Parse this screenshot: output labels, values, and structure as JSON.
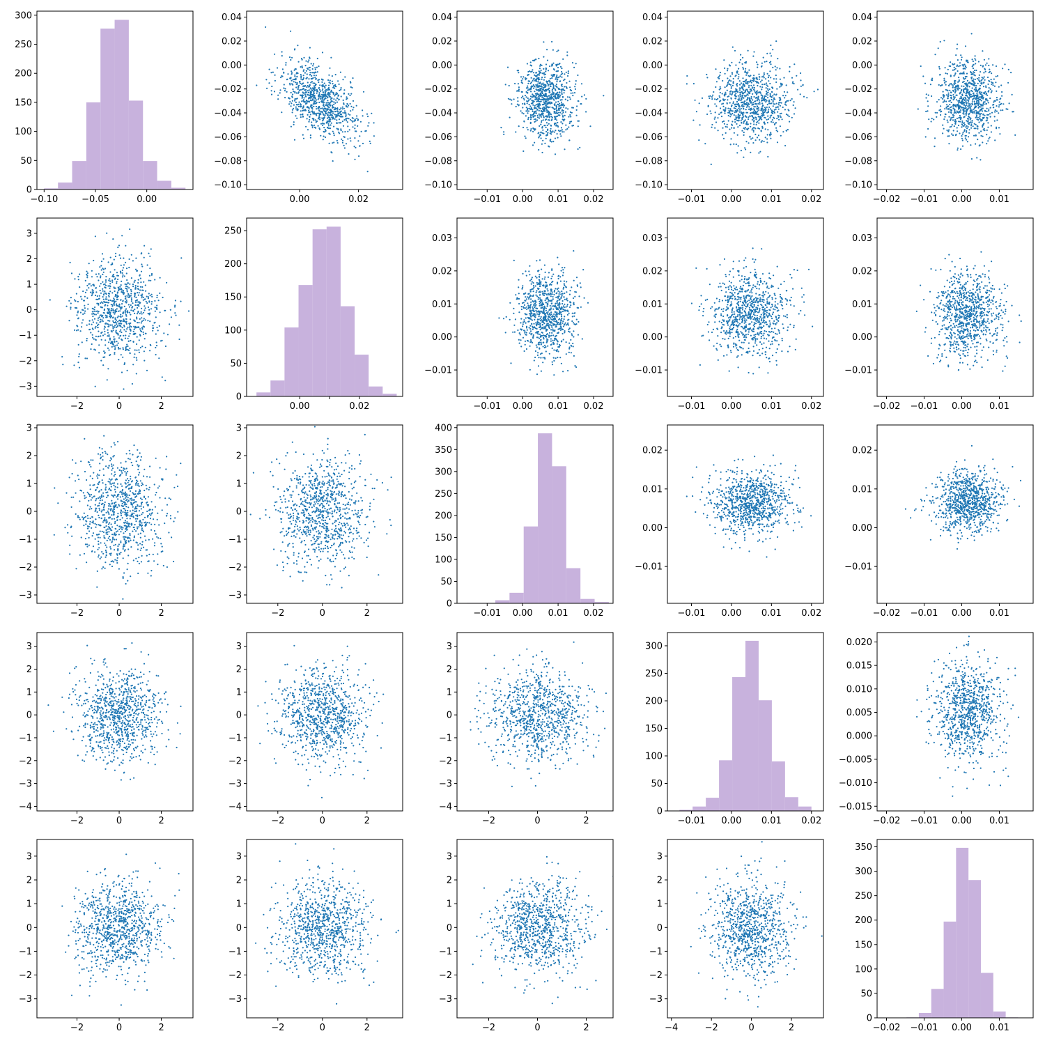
{
  "figure": {
    "layout": "5x5 pair plot (histograms on diagonal, scatter plots off-diagonal)",
    "hist_color": "#c8b2dd",
    "point_color": "#1f77b4",
    "background": "#ffffff"
  },
  "chart_data": [
    {
      "type": "bar",
      "panel": [
        0,
        0
      ],
      "bin_edges": [
        -0.1,
        -0.0865,
        -0.0727,
        -0.0589,
        -0.0451,
        -0.0313,
        -0.0175,
        -0.0037,
        0.0101,
        0.0239,
        0.0377
      ],
      "values": [
        2,
        12,
        49,
        150,
        277,
        292,
        153,
        49,
        15,
        3
      ],
      "xlim": [
        -0.107,
        0.045
      ],
      "ylim": [
        0,
        307
      ],
      "xticks": [
        -0.1,
        -0.05,
        0.0
      ],
      "xtick_labels": [
        "−0.10",
        "−0.05",
        "0.00"
      ],
      "yticks": [
        0,
        50,
        100,
        150,
        200,
        250,
        300
      ],
      "ytick_labels": [
        "0",
        "50",
        "100",
        "150",
        "200",
        "250",
        "300"
      ]
    },
    {
      "type": "scatter",
      "panel": [
        0,
        1
      ],
      "n": 900,
      "x_mean": 0.0065,
      "x_sd": 0.0065,
      "y_mean": -0.03,
      "y_sd": 0.0165,
      "correlation": -0.55,
      "xlim": [
        -0.018,
        0.035
      ],
      "ylim": [
        -0.104,
        0.045
      ],
      "xticks": [
        0.0,
        0.02
      ],
      "xtick_labels": [
        "0.00",
        "0.02"
      ],
      "yticks": [
        -0.1,
        -0.08,
        -0.06,
        -0.04,
        -0.02,
        0.0,
        0.02,
        0.04
      ],
      "ytick_labels": [
        "−0.10",
        "−0.08",
        "−0.06",
        "−0.04",
        "−0.02",
        "0.00",
        "0.02",
        "0.04"
      ]
    },
    {
      "type": "scatter",
      "panel": [
        0,
        2
      ],
      "n": 900,
      "x_mean": 0.0067,
      "x_sd": 0.004,
      "y_mean": -0.03,
      "y_sd": 0.0165,
      "correlation": 0.0,
      "xlim": [
        -0.0185,
        0.0255
      ],
      "ylim": [
        -0.104,
        0.045
      ],
      "xticks": [
        -0.01,
        0.0,
        0.01,
        0.02
      ],
      "xtick_labels": [
        "−0.01",
        "0.00",
        "0.01",
        "0.02"
      ],
      "yticks": [
        -0.1,
        -0.08,
        -0.06,
        -0.04,
        -0.02,
        0.0,
        0.02,
        0.04
      ],
      "ytick_labels": [
        "−0.10",
        "−0.08",
        "−0.06",
        "−0.04",
        "−0.02",
        "0.00",
        "0.02",
        "0.04"
      ]
    },
    {
      "type": "scatter",
      "panel": [
        0,
        3
      ],
      "n": 900,
      "x_mean": 0.005,
      "x_sd": 0.005,
      "y_mean": -0.03,
      "y_sd": 0.0165,
      "correlation": 0.0,
      "xlim": [
        -0.016,
        0.023
      ],
      "ylim": [
        -0.104,
        0.045
      ],
      "xticks": [
        -0.01,
        0.0,
        0.01,
        0.02
      ],
      "xtick_labels": [
        "−0.01",
        "0.00",
        "0.01",
        "0.02"
      ],
      "yticks": [
        -0.1,
        -0.08,
        -0.06,
        -0.04,
        -0.02,
        0.0,
        0.02,
        0.04
      ],
      "ytick_labels": [
        "−0.10",
        "−0.08",
        "−0.06",
        "−0.04",
        "−0.02",
        "0.00",
        "0.02",
        "0.04"
      ]
    },
    {
      "type": "scatter",
      "panel": [
        0,
        4
      ],
      "n": 900,
      "x_mean": 0.0018,
      "x_sd": 0.0045,
      "y_mean": -0.03,
      "y_sd": 0.0165,
      "correlation": 0.0,
      "xlim": [
        -0.0225,
        0.019
      ],
      "ylim": [
        -0.104,
        0.045
      ],
      "xticks": [
        -0.02,
        -0.01,
        0.0,
        0.01
      ],
      "xtick_labels": [
        "−0.02",
        "−0.01",
        "0.00",
        "0.01"
      ],
      "yticks": [
        -0.1,
        -0.08,
        -0.06,
        -0.04,
        -0.02,
        0.0,
        0.02,
        0.04
      ],
      "ytick_labels": [
        "−0.10",
        "−0.08",
        "−0.06",
        "−0.04",
        "−0.02",
        "0.00",
        "0.02",
        "0.04"
      ]
    },
    {
      "type": "scatter",
      "panel": [
        1,
        0
      ],
      "n": 900,
      "x_mean": 0.0,
      "x_sd": 1.0,
      "y_mean": 0.0,
      "y_sd": 1.0,
      "correlation": 0.0,
      "xlim": [
        -3.9,
        3.5
      ],
      "ylim": [
        -3.4,
        3.6
      ],
      "xticks": [
        -2,
        0,
        2
      ],
      "xtick_labels": [
        "−2",
        "0",
        "2"
      ],
      "yticks": [
        -3,
        -2,
        -1,
        0,
        1,
        2,
        3
      ],
      "ytick_labels": [
        "−3",
        "−2",
        "−1",
        "0",
        "1",
        "2",
        "3"
      ]
    },
    {
      "type": "bar",
      "panel": [
        1,
        1
      ],
      "bin_edges": [
        -0.0145,
        -0.0098,
        -0.0051,
        -0.0004,
        0.0043,
        0.009,
        0.0137,
        0.0184,
        0.0231,
        0.0278,
        0.0325
      ],
      "values": [
        6,
        24,
        104,
        168,
        252,
        256,
        136,
        63,
        15,
        4
      ],
      "xlim": [
        -0.0178,
        0.0345
      ],
      "ylim": [
        0,
        269
      ],
      "xticks": [
        0.0,
        0.01,
        0.02
      ],
      "xtick_labels": [
        "0.00",
        "",
        "0.02"
      ],
      "yticks": [
        0,
        50,
        100,
        150,
        200,
        250
      ],
      "ytick_labels": [
        "0",
        "50",
        "100",
        "150",
        "200",
        "250"
      ]
    },
    {
      "type": "scatter",
      "panel": [
        1,
        2
      ],
      "n": 900,
      "x_mean": 0.0067,
      "x_sd": 0.004,
      "y_mean": 0.007,
      "y_sd": 0.0065,
      "correlation": 0.0,
      "xlim": [
        -0.0185,
        0.0255
      ],
      "ylim": [
        -0.018,
        0.036
      ],
      "xticks": [
        -0.01,
        0.0,
        0.01,
        0.02
      ],
      "xtick_labels": [
        "−0.01",
        "0.00",
        "0.01",
        "0.02"
      ],
      "yticks": [
        -0.01,
        0.0,
        0.01,
        0.02,
        0.03
      ],
      "ytick_labels": [
        "−0.01",
        "0.00",
        "0.01",
        "0.02",
        "0.03"
      ]
    },
    {
      "type": "scatter",
      "panel": [
        1,
        3
      ],
      "n": 900,
      "x_mean": 0.005,
      "x_sd": 0.005,
      "y_mean": 0.007,
      "y_sd": 0.0065,
      "correlation": 0.0,
      "xlim": [
        -0.016,
        0.023
      ],
      "ylim": [
        -0.018,
        0.036
      ],
      "xticks": [
        -0.01,
        0.0,
        0.01,
        0.02
      ],
      "xtick_labels": [
        "−0.01",
        "0.00",
        "0.01",
        "0.02"
      ],
      "yticks": [
        -0.01,
        0.0,
        0.01,
        0.02,
        0.03
      ],
      "ytick_labels": [
        "−0.01",
        "0.00",
        "0.01",
        "0.02",
        "0.03"
      ]
    },
    {
      "type": "scatter",
      "panel": [
        1,
        4
      ],
      "n": 900,
      "x_mean": 0.0018,
      "x_sd": 0.0045,
      "y_mean": 0.007,
      "y_sd": 0.0065,
      "correlation": 0.0,
      "xlim": [
        -0.0225,
        0.019
      ],
      "ylim": [
        -0.018,
        0.036
      ],
      "xticks": [
        -0.02,
        -0.01,
        0.0,
        0.01
      ],
      "xtick_labels": [
        "−0.02",
        "−0.01",
        "0.00",
        "0.01"
      ],
      "yticks": [
        -0.01,
        0.0,
        0.01,
        0.02,
        0.03
      ],
      "ytick_labels": [
        "−0.01",
        "0.00",
        "0.01",
        "0.02",
        "0.03"
      ]
    },
    {
      "type": "scatter",
      "panel": [
        2,
        0
      ],
      "n": 900,
      "x_mean": 0.0,
      "x_sd": 1.0,
      "y_mean": 0.0,
      "y_sd": 1.0,
      "correlation": 0.0,
      "xlim": [
        -3.9,
        3.5
      ],
      "ylim": [
        -3.3,
        3.1
      ],
      "xticks": [
        -2,
        0,
        2
      ],
      "xtick_labels": [
        "−2",
        "0",
        "2"
      ],
      "yticks": [
        -3,
        -2,
        -1,
        0,
        1,
        2,
        3
      ],
      "ytick_labels": [
        "−3",
        "−2",
        "−1",
        "0",
        "1",
        "2",
        "3"
      ]
    },
    {
      "type": "scatter",
      "panel": [
        2,
        1
      ],
      "n": 900,
      "x_mean": 0.0,
      "x_sd": 1.0,
      "y_mean": 0.0,
      "y_sd": 1.0,
      "correlation": 0.0,
      "xlim": [
        -3.4,
        3.6
      ],
      "ylim": [
        -3.3,
        3.1
      ],
      "xticks": [
        -2,
        0,
        2
      ],
      "xtick_labels": [
        "−2",
        "0",
        "2"
      ],
      "yticks": [
        -3,
        -2,
        -1,
        0,
        1,
        2,
        3
      ],
      "ytick_labels": [
        "−3",
        "−2",
        "−1",
        "0",
        "1",
        "2",
        "3"
      ]
    },
    {
      "type": "bar",
      "panel": [
        2,
        2
      ],
      "bin_edges": [
        -0.0157,
        -0.0117,
        -0.0077,
        -0.0037,
        0.0003,
        0.0043,
        0.0083,
        0.0123,
        0.0163,
        0.0203,
        0.0243
      ],
      "values": [
        1,
        1,
        7,
        24,
        175,
        387,
        312,
        80,
        10,
        3
      ],
      "xlim": [
        -0.0185,
        0.0255
      ],
      "ylim": [
        0,
        406
      ],
      "xticks": [
        -0.01,
        0.0,
        0.01,
        0.02
      ],
      "xtick_labels": [
        "−0.01",
        "0.00",
        "0.01",
        "0.02"
      ],
      "yticks": [
        0,
        50,
        100,
        150,
        200,
        250,
        300,
        350,
        400
      ],
      "ytick_labels": [
        "0",
        "50",
        "100",
        "150",
        "200",
        "250",
        "300",
        "350",
        "400"
      ]
    },
    {
      "type": "scatter",
      "panel": [
        2,
        3
      ],
      "n": 900,
      "x_mean": 0.005,
      "x_sd": 0.005,
      "y_mean": 0.0067,
      "y_sd": 0.004,
      "correlation": 0.0,
      "xlim": [
        -0.016,
        0.023
      ],
      "ylim": [
        -0.0195,
        0.0265
      ],
      "xticks": [
        -0.01,
        0.0,
        0.01,
        0.02
      ],
      "xtick_labels": [
        "−0.01",
        "0.00",
        "0.01",
        "0.02"
      ],
      "yticks": [
        -0.01,
        0.0,
        0.01,
        0.02
      ],
      "ytick_labels": [
        "−0.01",
        "0.00",
        "0.01",
        "0.02"
      ]
    },
    {
      "type": "scatter",
      "panel": [
        2,
        4
      ],
      "n": 900,
      "x_mean": 0.0018,
      "x_sd": 0.0045,
      "y_mean": 0.0067,
      "y_sd": 0.004,
      "correlation": 0.0,
      "xlim": [
        -0.0225,
        0.019
      ],
      "ylim": [
        -0.0195,
        0.0265
      ],
      "xticks": [
        -0.02,
        -0.01,
        0.0,
        0.01
      ],
      "xtick_labels": [
        "−0.02",
        "−0.01",
        "0.00",
        "0.01"
      ],
      "yticks": [
        -0.01,
        0.0,
        0.01,
        0.02
      ],
      "ytick_labels": [
        "−0.01",
        "0.00",
        "0.01",
        "0.02"
      ]
    },
    {
      "type": "scatter",
      "panel": [
        3,
        0
      ],
      "n": 900,
      "x_mean": 0.0,
      "x_sd": 1.0,
      "y_mean": 0.0,
      "y_sd": 1.0,
      "correlation": 0.0,
      "xlim": [
        -3.9,
        3.5
      ],
      "ylim": [
        -4.2,
        3.6
      ],
      "xticks": [
        -2,
        0,
        2
      ],
      "xtick_labels": [
        "−2",
        "0",
        "2"
      ],
      "yticks": [
        -4,
        -3,
        -2,
        -1,
        0,
        1,
        2,
        3
      ],
      "ytick_labels": [
        "−4",
        "−3",
        "−2",
        "−1",
        "0",
        "1",
        "2",
        "3"
      ]
    },
    {
      "type": "scatter",
      "panel": [
        3,
        1
      ],
      "n": 900,
      "x_mean": 0.0,
      "x_sd": 1.0,
      "y_mean": 0.0,
      "y_sd": 1.0,
      "correlation": 0.0,
      "xlim": [
        -3.4,
        3.6
      ],
      "ylim": [
        -4.2,
        3.6
      ],
      "xticks": [
        -2,
        0,
        2
      ],
      "xtick_labels": [
        "−2",
        "0",
        "2"
      ],
      "yticks": [
        -4,
        -3,
        -2,
        -1,
        0,
        1,
        2,
        3
      ],
      "ytick_labels": [
        "−4",
        "−3",
        "−2",
        "−1",
        "0",
        "1",
        "2",
        "3"
      ]
    },
    {
      "type": "scatter",
      "panel": [
        3,
        2
      ],
      "n": 900,
      "x_mean": 0.0,
      "x_sd": 1.0,
      "y_mean": 0.0,
      "y_sd": 1.0,
      "correlation": 0.0,
      "xlim": [
        -3.3,
        3.1
      ],
      "ylim": [
        -4.2,
        3.6
      ],
      "xticks": [
        -2,
        0,
        2
      ],
      "xtick_labels": [
        "−2",
        "0",
        "2"
      ],
      "yticks": [
        -4,
        -3,
        -2,
        -1,
        0,
        1,
        2,
        3
      ],
      "ytick_labels": [
        "−4",
        "−3",
        "−2",
        "−1",
        "0",
        "1",
        "2",
        "3"
      ]
    },
    {
      "type": "bar",
      "panel": [
        3,
        3
      ],
      "bin_edges": [
        -0.013,
        -0.0097,
        -0.0064,
        -0.0031,
        0.0002,
        0.0035,
        0.0068,
        0.0101,
        0.0134,
        0.0167,
        0.02
      ],
      "values": [
        2,
        8,
        24,
        92,
        243,
        309,
        201,
        90,
        25,
        8
      ],
      "xlim": [
        -0.016,
        0.023
      ],
      "ylim": [
        0,
        324
      ],
      "xticks": [
        -0.01,
        0.0,
        0.01,
        0.02
      ],
      "xtick_labels": [
        "−0.01",
        "0.00",
        "0.01",
        "0.02"
      ],
      "yticks": [
        0,
        50,
        100,
        150,
        200,
        250,
        300
      ],
      "ytick_labels": [
        "0",
        "50",
        "100",
        "150",
        "200",
        "250",
        "300"
      ]
    },
    {
      "type": "scatter",
      "panel": [
        3,
        4
      ],
      "n": 900,
      "x_mean": 0.0018,
      "x_sd": 0.0045,
      "y_mean": 0.005,
      "y_sd": 0.005,
      "correlation": 0.0,
      "xlim": [
        -0.0225,
        0.019
      ],
      "ylim": [
        -0.016,
        0.022
      ],
      "xticks": [
        -0.02,
        -0.01,
        0.0,
        0.01
      ],
      "xtick_labels": [
        "−0.02",
        "−0.01",
        "0.00",
        "0.01"
      ],
      "yticks": [
        -0.015,
        -0.01,
        -0.005,
        0.0,
        0.005,
        0.01,
        0.015,
        0.02
      ],
      "ytick_labels": [
        "−0.015",
        "−0.010",
        "−0.005",
        "0.000",
        "0.005",
        "0.010",
        "0.015",
        "0.020"
      ]
    },
    {
      "type": "scatter",
      "panel": [
        4,
        0
      ],
      "n": 900,
      "x_mean": 0.0,
      "x_sd": 1.0,
      "y_mean": 0.0,
      "y_sd": 1.0,
      "correlation": 0.0,
      "xlim": [
        -3.9,
        3.5
      ],
      "ylim": [
        -3.8,
        3.7
      ],
      "xticks": [
        -2,
        0,
        2
      ],
      "xtick_labels": [
        "−2",
        "0",
        "2"
      ],
      "yticks": [
        -3,
        -2,
        -1,
        0,
        1,
        2,
        3
      ],
      "ytick_labels": [
        "−3",
        "−2",
        "−1",
        "0",
        "1",
        "2",
        "3"
      ]
    },
    {
      "type": "scatter",
      "panel": [
        4,
        1
      ],
      "n": 900,
      "x_mean": 0.0,
      "x_sd": 1.0,
      "y_mean": 0.0,
      "y_sd": 1.0,
      "correlation": 0.0,
      "xlim": [
        -3.4,
        3.6
      ],
      "ylim": [
        -3.8,
        3.7
      ],
      "xticks": [
        -2,
        0,
        2
      ],
      "xtick_labels": [
        "−2",
        "0",
        "2"
      ],
      "yticks": [
        -3,
        -2,
        -1,
        0,
        1,
        2,
        3
      ],
      "ytick_labels": [
        "−3",
        "−2",
        "−1",
        "0",
        "1",
        "2",
        "3"
      ]
    },
    {
      "type": "scatter",
      "panel": [
        4,
        2
      ],
      "n": 900,
      "x_mean": 0.0,
      "x_sd": 1.0,
      "y_mean": 0.0,
      "y_sd": 1.0,
      "correlation": 0.0,
      "xlim": [
        -3.3,
        3.1
      ],
      "ylim": [
        -3.8,
        3.7
      ],
      "xticks": [
        -2,
        0,
        2
      ],
      "xtick_labels": [
        "−2",
        "0",
        "2"
      ],
      "yticks": [
        -3,
        -2,
        -1,
        0,
        1,
        2,
        3
      ],
      "ytick_labels": [
        "−3",
        "−2",
        "−1",
        "0",
        "1",
        "2",
        "3"
      ]
    },
    {
      "type": "scatter",
      "panel": [
        4,
        3
      ],
      "n": 900,
      "x_mean": 0.0,
      "x_sd": 1.0,
      "y_mean": 0.0,
      "y_sd": 1.0,
      "correlation": 0.0,
      "xlim": [
        -4.2,
        3.6
      ],
      "ylim": [
        -3.8,
        3.7
      ],
      "xticks": [
        -4,
        -2,
        0,
        2
      ],
      "xtick_labels": [
        "−4",
        "−2",
        "0",
        "2"
      ],
      "yticks": [
        -3,
        -2,
        -1,
        0,
        1,
        2,
        3
      ],
      "ytick_labels": [
        "−3",
        "−2",
        "−1",
        "0",
        "1",
        "2",
        "3"
      ]
    },
    {
      "type": "bar",
      "panel": [
        4,
        4
      ],
      "bin_edges": [
        -0.018,
        -0.0147,
        -0.0114,
        -0.0081,
        -0.0048,
        -0.0015,
        0.0018,
        0.0051,
        0.0084,
        0.0117,
        0.015
      ],
      "values": [
        0,
        1,
        10,
        59,
        197,
        348,
        282,
        92,
        13,
        1
      ],
      "xlim": [
        -0.0225,
        0.019
      ],
      "ylim": [
        0,
        365
      ],
      "xticks": [
        -0.02,
        -0.01,
        0.0,
        0.01
      ],
      "xtick_labels": [
        "−0.02",
        "−0.01",
        "0.00",
        "0.01"
      ],
      "yticks": [
        0,
        50,
        100,
        150,
        200,
        250,
        300,
        350
      ],
      "ytick_labels": [
        "0",
        "50",
        "100",
        "150",
        "200",
        "250",
        "300",
        "350"
      ]
    }
  ]
}
